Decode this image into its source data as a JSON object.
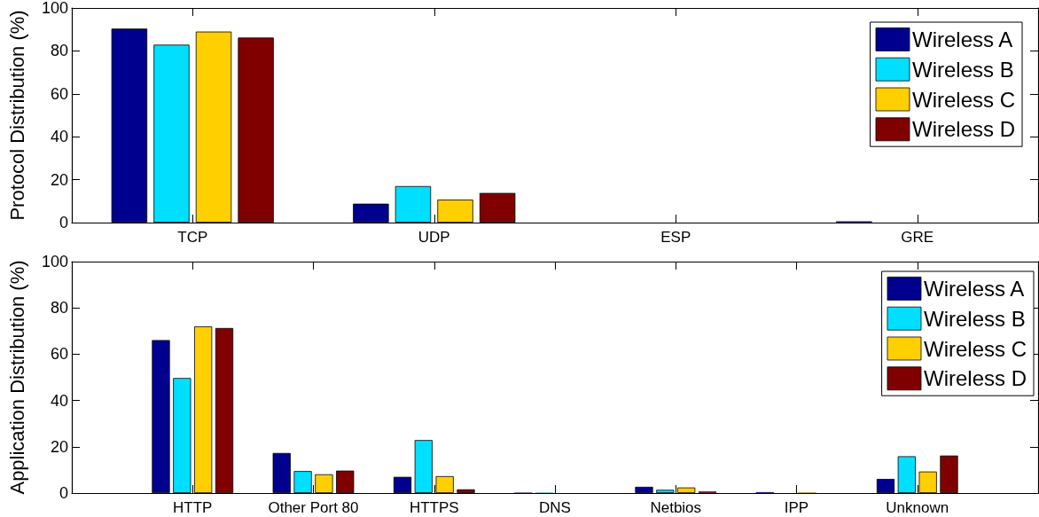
{
  "chart_data": [
    {
      "type": "bar",
      "ylabel": "Protocol Distribution (%)",
      "categories": [
        "TCP",
        "UDP",
        "ESP",
        "GRE"
      ],
      "series": [
        {
          "name": "Wireless A",
          "color": "#00008f",
          "values": [
            90.4,
            8.8,
            0,
            0.6
          ]
        },
        {
          "name": "Wireless B",
          "color": "#00dfff",
          "values": [
            82.9,
            17.0,
            0,
            0
          ]
        },
        {
          "name": "Wireless C",
          "color": "#ffcf00",
          "values": [
            89.0,
            10.7,
            0,
            0
          ]
        },
        {
          "name": "Wireless D",
          "color": "#800000",
          "values": [
            86.2,
            13.8,
            0,
            0
          ]
        }
      ],
      "ylim": [
        0,
        100
      ],
      "yticks": [
        0,
        20,
        40,
        60,
        80,
        100
      ],
      "legend": "top right"
    },
    {
      "type": "bar",
      "ylabel": "Application Distribution (%)",
      "categories": [
        "HTTP",
        "Other Port 80",
        "HTTPS",
        "DNS",
        "Netbios",
        "IPP",
        "Unknown"
      ],
      "series": [
        {
          "name": "Wireless A",
          "color": "#00008f",
          "values": [
            66.1,
            17.3,
            7.0,
            0.2,
            2.7,
            0.4,
            6.1
          ]
        },
        {
          "name": "Wireless B",
          "color": "#00dfff",
          "values": [
            49.7,
            9.5,
            22.9,
            0.2,
            1.4,
            0,
            15.9
          ]
        },
        {
          "name": "Wireless C",
          "color": "#ffcf00",
          "values": [
            72.0,
            8.1,
            7.3,
            0,
            2.4,
            0.3,
            9.3
          ]
        },
        {
          "name": "Wireless D",
          "color": "#800000",
          "values": [
            71.3,
            9.7,
            1.6,
            0,
            0.7,
            0,
            16.2
          ]
        }
      ],
      "ylim": [
        0,
        100
      ],
      "yticks": [
        0,
        20,
        40,
        60,
        80,
        100
      ],
      "legend": "top right"
    }
  ]
}
